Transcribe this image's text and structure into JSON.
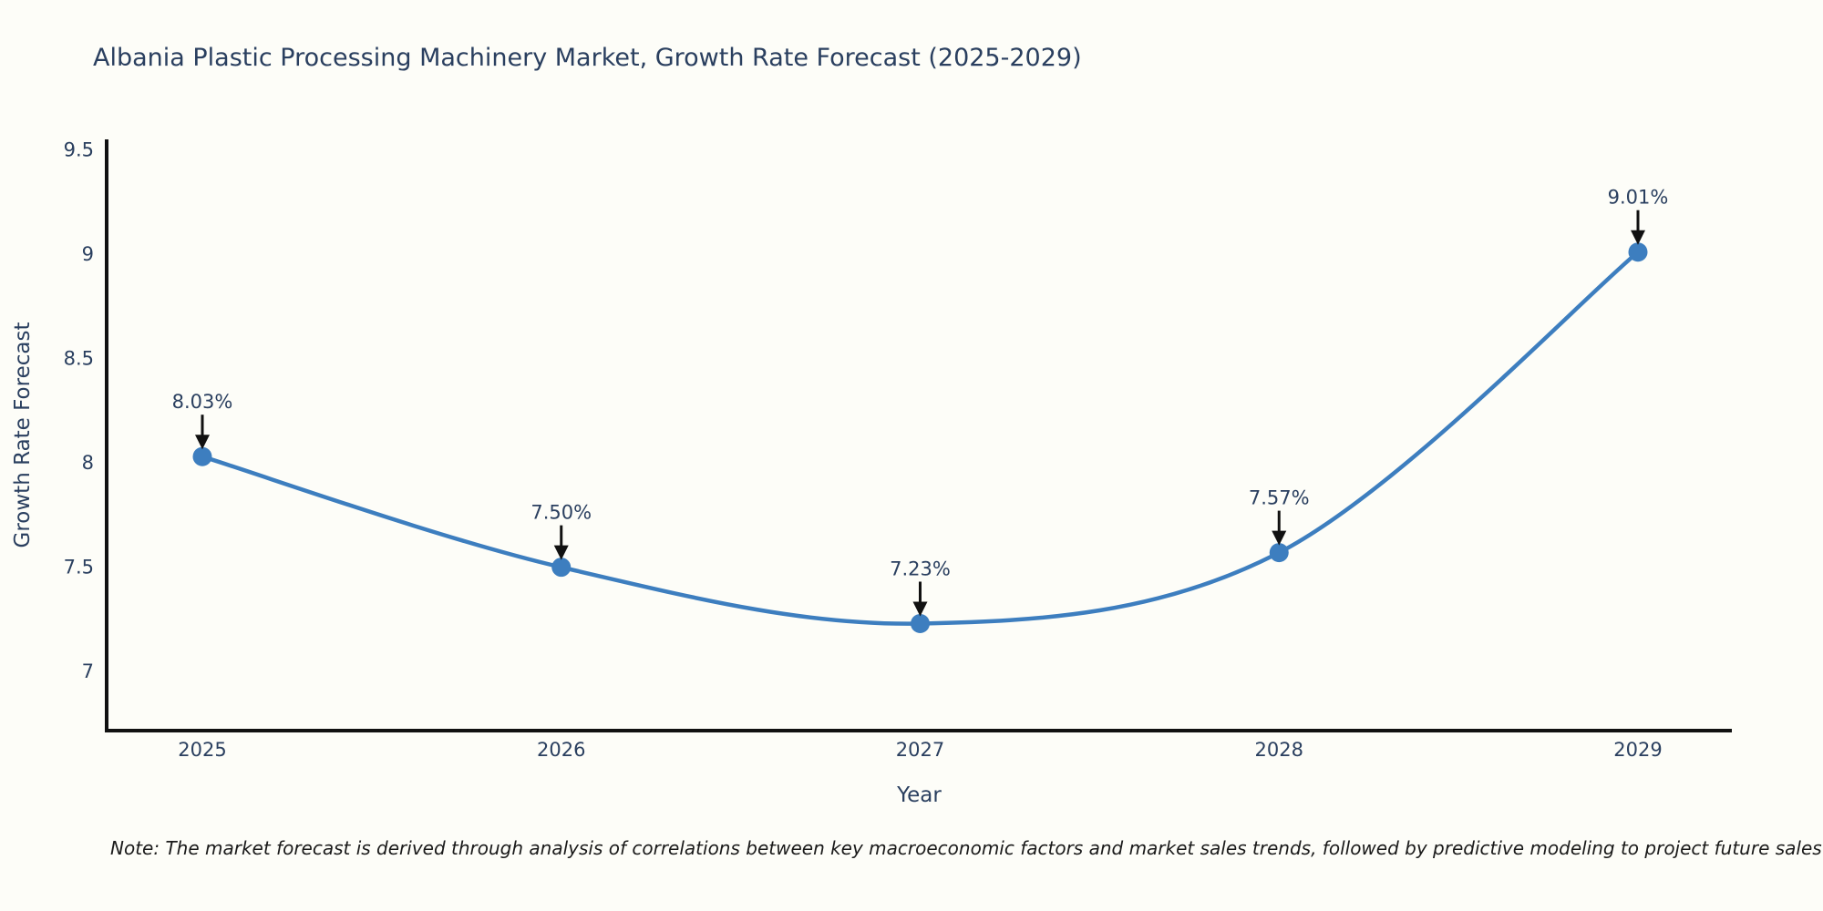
{
  "note": "Note: The market forecast is derived through analysis of correlations between key macroeconomic factors and market sales trends, followed by predictive modeling to project future sales",
  "colors": {
    "title_text": "#2a3f5f",
    "tick_text": "#2a3f5f",
    "axis_line": "#111111",
    "series_line": "#3d7ebf",
    "marker_fill": "#3d7ebf",
    "annotation_text": "#2a3f5f",
    "annotation_arrow": "#111111",
    "background": "#fdfdf8"
  },
  "chart_data": {
    "type": "line",
    "title": "Albania Plastic Processing Machinery Market, Growth Rate Forecast (2025-2029)",
    "xlabel": "Year",
    "ylabel": "Growth Rate Forecast",
    "x": [
      "2025",
      "2026",
      "2027",
      "2028",
      "2029"
    ],
    "values": [
      8.03,
      7.5,
      7.23,
      7.57,
      9.01
    ],
    "point_labels": [
      "8.03%",
      "7.50%",
      "7.23%",
      "7.57%",
      "9.01%"
    ],
    "yticks": [
      7,
      7.5,
      8,
      8.5,
      9,
      9.5
    ],
    "ytick_labels": [
      "7",
      "7.5",
      "8",
      "8.5",
      "9",
      "9.5"
    ],
    "ylim": [
      6.717,
      9.55
    ],
    "grid": false,
    "legend": "none",
    "line_shape": "spline",
    "annotations": "value labels with down arrows above each point"
  }
}
